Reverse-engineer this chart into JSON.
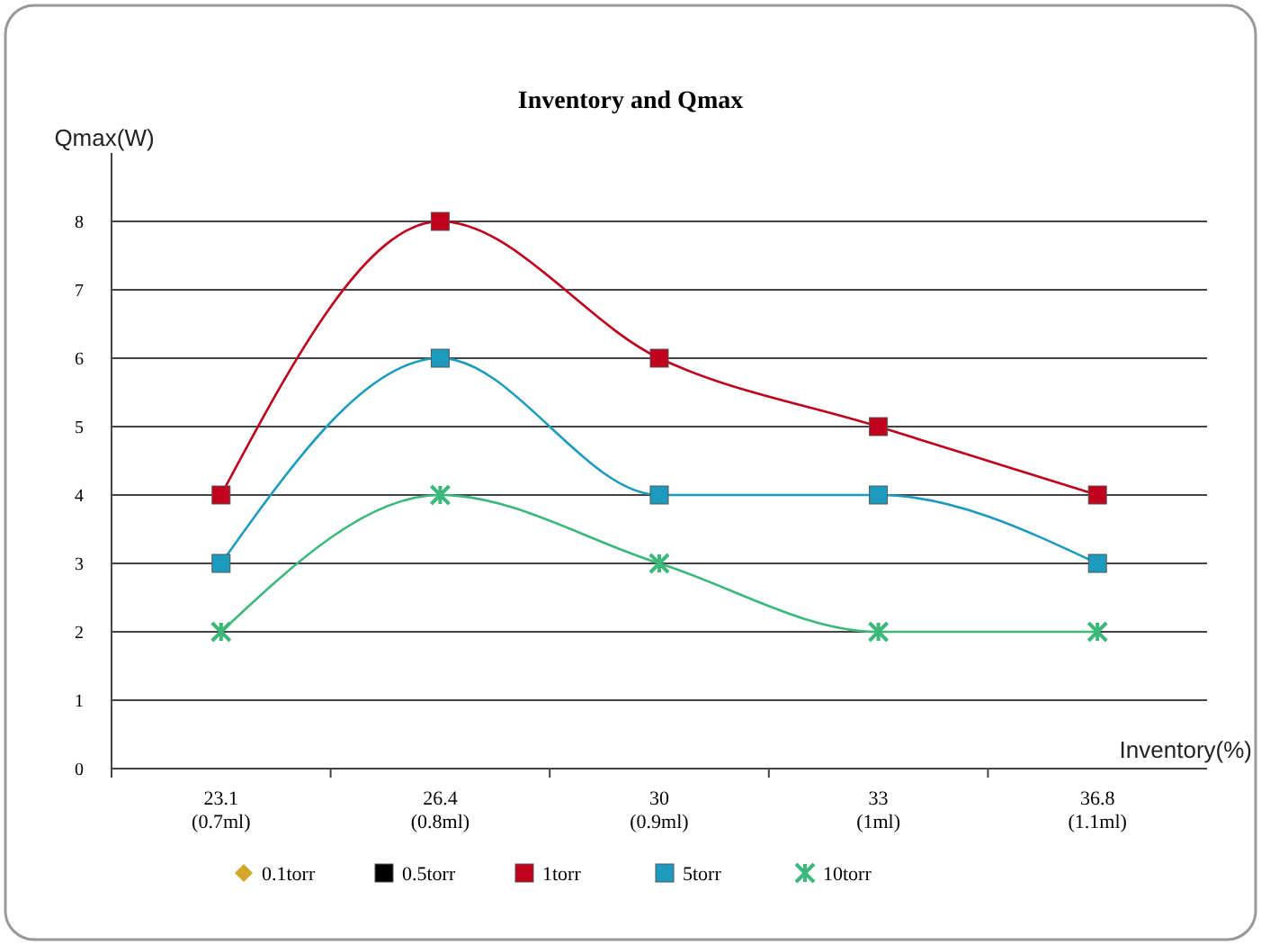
{
  "chart_data": {
    "type": "line",
    "title": "Inventory and Qmax",
    "xlabel": "Inventory(%)",
    "ylabel": "Qmax(W)",
    "categories": [
      "23.1\n(0.7ml)",
      "26.4\n(0.8ml)",
      "30\n(0.9ml)",
      "33\n(1ml)",
      "36.8\n(1.1ml)"
    ],
    "series": [
      {
        "name": "0.1torr",
        "color": "#d4a72c",
        "marker": "diamond",
        "values": [
          null,
          null,
          null,
          null,
          null
        ]
      },
      {
        "name": "0.5torr",
        "color": "#000000",
        "marker": "square",
        "values": [
          null,
          null,
          null,
          null,
          null
        ]
      },
      {
        "name": "1torr",
        "color": "#c0001c",
        "marker": "square",
        "values": [
          4,
          8,
          6,
          5,
          4
        ]
      },
      {
        "name": "5torr",
        "color": "#1d9bbf",
        "marker": "square",
        "values": [
          3,
          6,
          4,
          4,
          3
        ]
      },
      {
        "name": "10torr",
        "color": "#3cb87a",
        "marker": "cross",
        "values": [
          2,
          4,
          3,
          2,
          2
        ]
      }
    ],
    "ylim": [
      0,
      9
    ],
    "yticks": [
      0,
      1,
      2,
      3,
      4,
      5,
      6,
      7,
      8
    ],
    "grid": "y",
    "legend": "bottom"
  }
}
